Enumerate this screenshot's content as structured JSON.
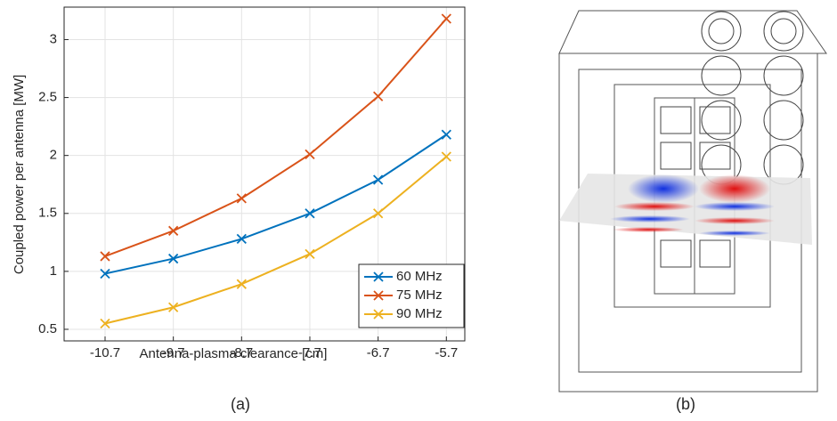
{
  "chart_data": {
    "type": "line",
    "x": [
      -10.7,
      -9.7,
      -8.7,
      -7.7,
      -6.7,
      -5.7
    ],
    "xlim": [
      -11.3,
      -5.43
    ],
    "xticks": [
      -10.7,
      -9.7,
      -8.7,
      -7.7,
      -6.7,
      -5.7
    ],
    "ylim": [
      0.4,
      3.28
    ],
    "yticks": [
      0.5,
      1,
      1.5,
      2,
      2.5,
      3
    ],
    "xlabel": "Antenna-plasma clearance [cm]",
    "ylabel": "Coupled power per antenna [MW]",
    "grid": true,
    "legend": "lower right",
    "series": [
      {
        "name": "60 MHz",
        "color": "#0072bd",
        "values": [
          0.98,
          1.11,
          1.28,
          1.5,
          1.79,
          2.18
        ]
      },
      {
        "name": "75 MHz",
        "color": "#d95319",
        "values": [
          1.13,
          1.35,
          1.63,
          2.01,
          2.51,
          3.18
        ]
      },
      {
        "name": "90 MHz",
        "color": "#edb120",
        "values": [
          0.55,
          0.69,
          0.89,
          1.15,
          1.5,
          1.99
        ]
      }
    ]
  },
  "captions": [
    "(a)",
    "(b)"
  ]
}
